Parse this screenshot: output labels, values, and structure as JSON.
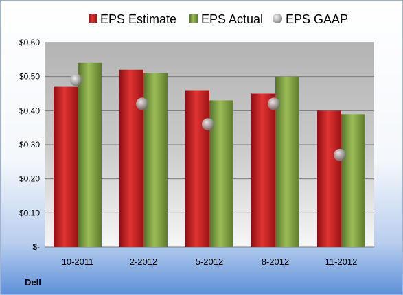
{
  "company": "Dell",
  "chart_data": {
    "type": "bar",
    "categories": [
      "10-2011",
      "2-2012",
      "5-2012",
      "8-2012",
      "11-2012"
    ],
    "series": [
      {
        "name": "EPS Estimate",
        "kind": "bar",
        "color": "#cc1f1f",
        "values": [
          0.47,
          0.52,
          0.46,
          0.45,
          0.4
        ]
      },
      {
        "name": "EPS Actual",
        "kind": "bar",
        "color": "#7f9f3a",
        "values": [
          0.54,
          0.51,
          0.43,
          0.5,
          0.39
        ]
      },
      {
        "name": "EPS GAAP",
        "kind": "marker",
        "color": "#a8a8a8",
        "values": [
          0.49,
          0.42,
          0.36,
          0.42,
          0.27
        ]
      }
    ],
    "yticks": [
      "$-",
      "$0.10",
      "$0.20",
      "$0.30",
      "$0.40",
      "$0.50",
      "$0.60"
    ],
    "ylim": [
      0,
      0.6
    ],
    "grid": true,
    "legend": "top"
  }
}
